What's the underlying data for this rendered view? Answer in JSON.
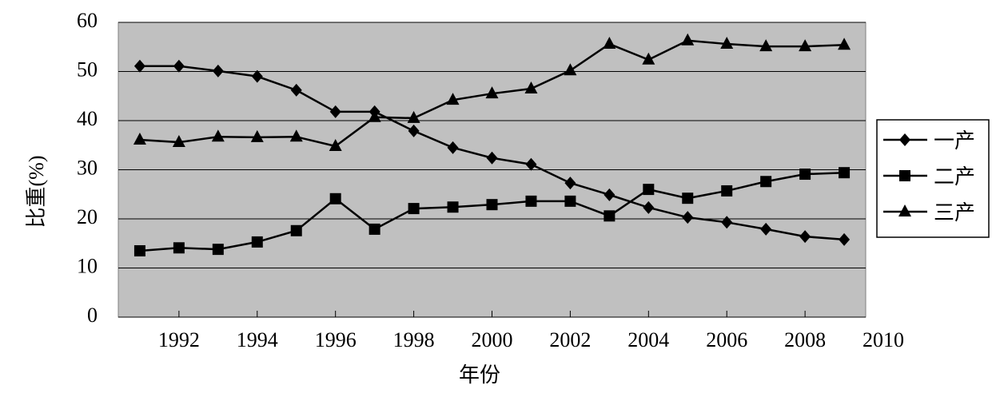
{
  "chart_data": {
    "type": "line",
    "x_label": "年份",
    "y_label": "比重(%)",
    "x": [
      1991,
      1992,
      1993,
      1994,
      1995,
      1996,
      1997,
      1998,
      1999,
      2000,
      2001,
      2002,
      2003,
      2004,
      2005,
      2006,
      2007,
      2008,
      2009
    ],
    "xlim": [
      1990.45,
      2009.55
    ],
    "xticks": [
      1992,
      1994,
      1996,
      1998,
      2000,
      2002,
      2004,
      2006,
      2008,
      2010
    ],
    "ylim": [
      0,
      60
    ],
    "yticks": [
      0,
      10,
      20,
      30,
      40,
      50,
      60
    ],
    "grid": true,
    "legend": "right",
    "series": [
      {
        "name": "一产",
        "color": "#000000",
        "marker": "diamond",
        "values": [
          51.1,
          51.1,
          50.1,
          49.0,
          46.2,
          41.8,
          41.8,
          37.9,
          34.5,
          32.4,
          31.1,
          27.3,
          24.9,
          22.3,
          20.3,
          19.3,
          17.9,
          16.4,
          15.8
        ]
      },
      {
        "name": "二产",
        "color": "#000000",
        "marker": "square",
        "values": [
          13.5,
          14.1,
          13.8,
          15.3,
          17.6,
          24.1,
          17.9,
          22.1,
          22.4,
          22.9,
          23.6,
          23.6,
          20.6,
          26.0,
          24.2,
          25.7,
          27.6,
          29.1,
          29.4
        ]
      },
      {
        "name": "三产",
        "color": "#000000",
        "marker": "triangle",
        "values": [
          36.1,
          35.6,
          36.7,
          36.6,
          36.7,
          34.8,
          40.7,
          40.5,
          44.2,
          45.5,
          46.5,
          50.2,
          55.6,
          52.4,
          56.3,
          55.6,
          55.1,
          55.1,
          55.4
        ]
      }
    ]
  }
}
